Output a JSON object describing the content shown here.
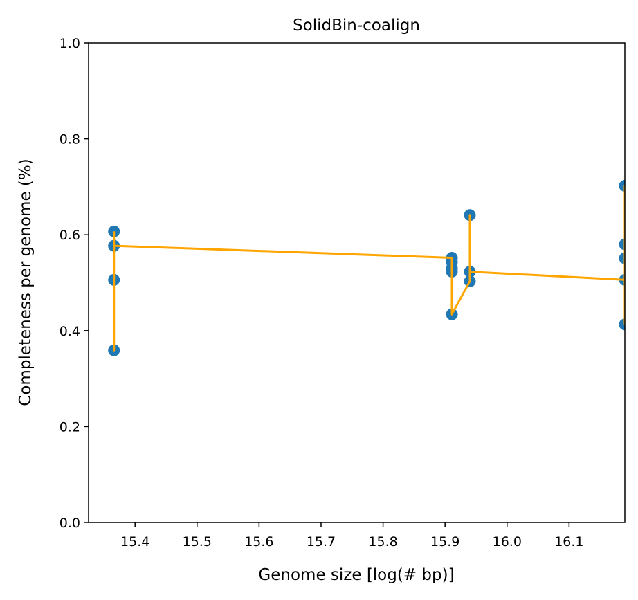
{
  "chart_data": {
    "type": "scatter",
    "title": "SolidBin-coalign",
    "xlabel": "Genome size [log(# bp)]",
    "ylabel": "Completeness per genome (%)",
    "xlim": [
      15.325,
      16.19
    ],
    "ylim": [
      0.0,
      1.0
    ],
    "xticks": [
      "15.4",
      "15.5",
      "15.6",
      "15.7",
      "15.8",
      "15.9",
      "16.0",
      "16.1"
    ],
    "yticks": [
      "0.0",
      "0.2",
      "0.4",
      "0.6",
      "0.8",
      "1.0"
    ],
    "grid": false,
    "colors": {
      "points": "#1f77b4",
      "line": "#ffa500"
    },
    "points": [
      {
        "x": 15.366,
        "y": 0.607
      },
      {
        "x": 15.366,
        "y": 0.577
      },
      {
        "x": 15.366,
        "y": 0.506
      },
      {
        "x": 15.366,
        "y": 0.359
      },
      {
        "x": 15.911,
        "y": 0.552
      },
      {
        "x": 15.911,
        "y": 0.543
      },
      {
        "x": 15.911,
        "y": 0.53
      },
      {
        "x": 15.911,
        "y": 0.523
      },
      {
        "x": 15.911,
        "y": 0.434
      },
      {
        "x": 15.94,
        "y": 0.641
      },
      {
        "x": 15.94,
        "y": 0.523
      },
      {
        "x": 15.94,
        "y": 0.503
      },
      {
        "x": 16.19,
        "y": 0.702
      },
      {
        "x": 16.19,
        "y": 0.58
      },
      {
        "x": 16.19,
        "y": 0.551
      },
      {
        "x": 16.19,
        "y": 0.506
      },
      {
        "x": 16.19,
        "y": 0.413
      }
    ],
    "line": [
      {
        "x": 15.366,
        "y": 0.607
      },
      {
        "x": 15.366,
        "y": 0.359
      },
      {
        "x": 15.366,
        "y": 0.577
      },
      {
        "x": 15.911,
        "y": 0.552
      },
      {
        "x": 15.911,
        "y": 0.434
      },
      {
        "x": 15.94,
        "y": 0.503
      },
      {
        "x": 15.94,
        "y": 0.641
      },
      {
        "x": 15.94,
        "y": 0.523
      },
      {
        "x": 16.19,
        "y": 0.506
      },
      {
        "x": 16.19,
        "y": 0.702
      },
      {
        "x": 16.19,
        "y": 0.413
      }
    ]
  }
}
